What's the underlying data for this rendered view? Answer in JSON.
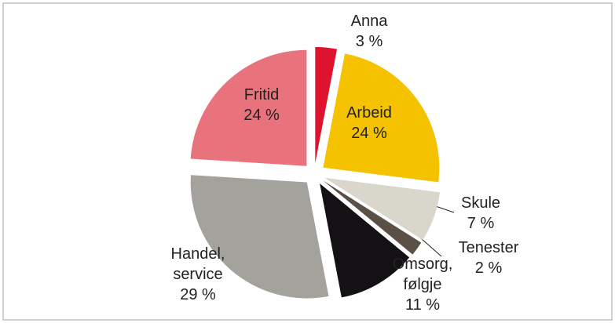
{
  "chart_data": {
    "type": "pie",
    "categories": [
      "Anna",
      "Arbeid",
      "Skule",
      "Tenester",
      "Omsorg, følgje",
      "Handel, service",
      "Fritid"
    ],
    "values": [
      3,
      24,
      7,
      2,
      11,
      29,
      24
    ],
    "value_labels": [
      "3 %",
      "24 %",
      "7 %",
      "2 %",
      "11 %",
      "29 %",
      "24 %"
    ],
    "colors": [
      "#e0132f",
      "#f5c200",
      "#d9d6cc",
      "#5b5046",
      "#131114",
      "#a4a29c",
      "#e8737d"
    ]
  }
}
